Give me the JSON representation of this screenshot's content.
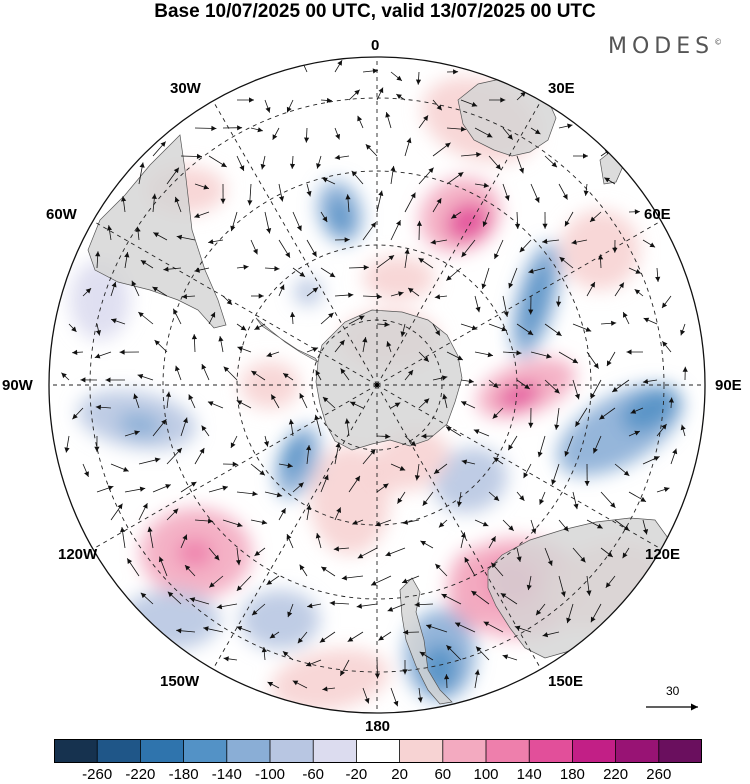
{
  "title": "Base 10/07/2025 00 UTC, valid 13/07/2025 00 UTC",
  "brand": {
    "name": "MODES",
    "mark": "©"
  },
  "longitude_labels": {
    "n0": "0",
    "n30e": "30E",
    "n60e": "60E",
    "n90e": "90E",
    "n120e": "120E",
    "n150e": "150E",
    "n180": "180",
    "n150w": "150W",
    "n120w": "120W",
    "n90w": "90W",
    "n60w": "60W",
    "n30w": "30W"
  },
  "reference_vector": {
    "value": "30"
  },
  "colorbar": {
    "colors": [
      "#16324f",
      "#1f5688",
      "#2f74ad",
      "#5392c6",
      "#8aaed6",
      "#b8c6e2",
      "#dcdcef",
      "#ffffff",
      "#f7d3d3",
      "#f3aac0",
      "#ee7fac",
      "#e24f9a",
      "#c21f86",
      "#981374",
      "#6a0f5e"
    ],
    "ticks": [
      "-260",
      "-220",
      "-180",
      "-140",
      "-100",
      "-60",
      "-20",
      "20",
      "60",
      "100",
      "140",
      "180",
      "220",
      "260"
    ]
  },
  "map_style": {
    "land": "#d4d4d4",
    "land_edge": "#555555",
    "grid": "#222222"
  }
}
